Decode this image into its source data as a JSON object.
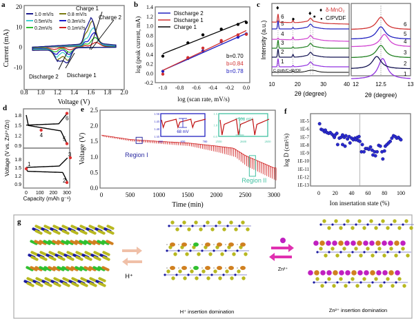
{
  "panels": {
    "a": "a",
    "b": "b",
    "c": "c",
    "d": "d",
    "e": "e",
    "f": "f",
    "g": "g"
  },
  "chart_data": [
    {
      "id": "a",
      "type": "line",
      "xlabel": "Voltage (V)",
      "ylabel": "Current (mA)",
      "xlim": [
        0.8,
        2.0
      ],
      "ylim": [
        -21,
        20
      ],
      "xticks": [
        "0.8",
        "1.0",
        "1.2",
        "1.4",
        "1.6",
        "1.8",
        "2.0"
      ],
      "yticks": [
        "20",
        "10",
        "0",
        "-10"
      ],
      "annotations": [
        "Charge 1",
        "Charge 2",
        "Discharge 2",
        "Discharge 1"
      ],
      "series": [
        {
          "name": "1.0 mV/s",
          "color": "#1a1a8c",
          "charge_peak": 12,
          "discharge1_peak": -6.8,
          "discharge2_peak": -6.2
        },
        {
          "name": "0.8 mV/s",
          "color": "#7a7a10",
          "charge_peak": 11,
          "discharge1_peak": -6,
          "discharge2_peak": -5.4
        },
        {
          "name": "0.5mV/s",
          "color": "#40d0d0",
          "charge_peak": 8,
          "discharge1_peak": -4.6,
          "discharge2_peak": -4
        },
        {
          "name": "0.3mV/s",
          "color": "#1a1acc",
          "charge_peak": 6,
          "discharge1_peak": -3.4,
          "discharge2_peak": -2.8
        },
        {
          "name": "0.2mV/s",
          "color": "#30c030",
          "charge_peak": 4,
          "discharge1_peak": -2.4,
          "discharge2_peak": -1.8
        },
        {
          "name": "0.1mV/s",
          "color": "#d02020",
          "charge_peak": 2,
          "discharge1_peak": -1.2,
          "discharge2_peak": -0.8
        }
      ]
    },
    {
      "id": "b",
      "type": "scatter",
      "xlabel": "log (scan rate, mV/s)",
      "ylabel": "log (peak current, mA)",
      "xlim": [
        -1.1,
        0.1
      ],
      "ylim": [
        -0.2,
        1.4
      ],
      "xticks": [
        "-1.0",
        "-0.8",
        "-0.6",
        "-0.4",
        "-0.2",
        "0.0"
      ],
      "yticks": [
        "1.4",
        "1.2",
        "1.0",
        "0.8",
        "0.6",
        "0.4",
        "0.2",
        "0.0",
        "-0.2"
      ],
      "x": [
        -1.0,
        -0.7,
        -0.52,
        -0.3,
        -0.1,
        0.0
      ],
      "series": [
        {
          "name": "Discharge 2",
          "color": "#2020c0",
          "values": [
            0.04,
            0.31,
            0.47,
            0.66,
            0.76,
            0.83
          ],
          "fit": [
            0.06,
            0.84
          ],
          "b": "b=0.78"
        },
        {
          "name": "Discharge 1",
          "color": "#d03030",
          "values": [
            -0.02,
            0.33,
            0.53,
            0.69,
            0.81,
            0.82
          ],
          "fit": [
            0.06,
            0.9
          ],
          "b": "b=0.84"
        },
        {
          "name": "Charge 1",
          "color": "#000000",
          "values": [
            0.36,
            0.64,
            0.81,
            0.93,
            1.03,
            1.07
          ],
          "fit": [
            0.41,
            1.11
          ],
          "b": "b=0.70"
        }
      ]
    },
    {
      "id": "c",
      "type": "line",
      "xlabel": "2θ (degree)",
      "ylabel": "Intensity (a.u.)",
      "xlim": [
        10,
        40
      ],
      "xticks": [
        "10",
        "20",
        "30",
        "40"
      ],
      "legend": [
        {
          "label": "δ-MnO₂",
          "color": "#d03030",
          "marker": "diamond"
        },
        {
          "label": "C/PVDF",
          "color": "#000000",
          "marker": "dot"
        }
      ],
      "baseline_label": "C cloth/C+PVDF",
      "mno2_peaks": [
        12.4,
        25.0
      ],
      "cpvdf_peaks": [
        18.2,
        26.0
      ],
      "series": [
        {
          "name": "1",
          "color": "#9030e0"
        },
        {
          "name": "2",
          "color": "#101050"
        },
        {
          "name": "3",
          "color": "#208020"
        },
        {
          "name": "4",
          "color": "#d040d0"
        },
        {
          "name": "5",
          "color": "#2020c0"
        },
        {
          "name": "6",
          "color": "#d03030"
        }
      ],
      "zoom": {
        "xlim": [
          12,
          13
        ],
        "xticks": [
          "12",
          "12.5",
          "13"
        ],
        "xlabel": "2θ (degree)",
        "peak_positions": [
          12.53,
          12.43,
          12.5,
          12.56,
          12.5,
          12.5
        ]
      }
    },
    {
      "id": "d",
      "type": "line",
      "xlabel": "Capacity (mAh g⁻¹)",
      "ylabel": "Voltage (V vs. Zn²⁺/Zn)",
      "xlim": [
        -20,
        330
      ],
      "xticks": [
        "0",
        "100",
        "200",
        "300"
      ],
      "yticks": [
        "1.8",
        "1.5",
        "1.2",
        "0.9"
      ],
      "points": [
        {
          "label": "1",
          "capacity": 0,
          "voltage": 1.45
        },
        {
          "label": "2",
          "capacity": 300,
          "voltage": 0.95
        },
        {
          "label": "3",
          "capacity": 325,
          "voltage": 1.85
        },
        {
          "label": "4",
          "capacity": 110,
          "voltage": 1.35
        },
        {
          "label": "5",
          "capacity": 300,
          "voltage": 0.95
        },
        {
          "label": "6",
          "capacity": 300,
          "voltage": 1.85
        }
      ]
    },
    {
      "id": "e",
      "type": "line",
      "xlabel": "Time (min)",
      "ylabel": "Voltage (V)",
      "xlim": [
        0,
        3050
      ],
      "ylim": [
        0,
        2.5
      ],
      "xticks": [
        "0",
        "500",
        "1000",
        "1500",
        "2000",
        "2500",
        "3000"
      ],
      "yticks": [
        "2.5",
        "2.0",
        "1.5",
        "1.0",
        "0.5",
        "0.0"
      ],
      "color": "#d02020",
      "upper_envelope": {
        "t": [
          0,
          500,
          1000,
          1500,
          2000,
          2300,
          2500,
          3000
        ],
        "v": [
          1.7,
          1.56,
          1.5,
          1.45,
          1.35,
          1.28,
          1.05,
          0.65
        ]
      },
      "lower_envelope": {
        "t": [
          0,
          500,
          1000,
          1500,
          2000,
          2300,
          2500,
          3000
        ],
        "v": [
          1.65,
          1.5,
          1.42,
          1.35,
          1.15,
          1.0,
          0.7,
          0.25
        ]
      },
      "regions": [
        {
          "label": "Region I",
          "color": "#2a2aa0",
          "t": 650
        },
        {
          "label": "Region II",
          "color": "#40c0a0",
          "t": 2620
        }
      ],
      "insets": [
        {
          "color": "#2020c0",
          "xticks": [
            "600",
            "650",
            "700"
          ],
          "yticks": [
            "1.50",
            "1.45",
            "1.40",
            "1.35"
          ],
          "annotation": "68 mV"
        },
        {
          "color": "#40c0a0",
          "xticks": [
            "2550",
            "2600",
            "2650"
          ],
          "yticks": [
            "1.5",
            "1.0",
            "0.5"
          ],
          "annotation": "508 mV"
        }
      ]
    },
    {
      "id": "f",
      "type": "scatter",
      "xlabel": "Ion insertation state (%)",
      "ylabel": "log D (cm²/s)",
      "xlim": [
        -5,
        110
      ],
      "ylim_exp": [
        -13.2,
        -4.7
      ],
      "xticks": [
        "0",
        "20",
        "40",
        "60",
        "80",
        "100"
      ],
      "yticks": [
        "1E-5",
        "1E-6",
        "1E-7",
        "1E-8",
        "1E-9",
        "1E-10",
        "1E-11",
        "1E-12",
        "1E-13"
      ],
      "divider_x": 50,
      "color": "#2a2ad0",
      "points": [
        [
          1,
          -5.4
        ],
        [
          3,
          -6.1
        ],
        [
          5,
          -6.2
        ],
        [
          7,
          -6.4
        ],
        [
          8,
          -6.2
        ],
        [
          10,
          -6.5
        ],
        [
          12,
          -6.6
        ],
        [
          14,
          -6.5
        ],
        [
          16,
          -6.7
        ],
        [
          18,
          -6.9
        ],
        [
          19,
          -7.1
        ],
        [
          20,
          -6.8
        ],
        [
          22,
          -6.6
        ],
        [
          23,
          -8
        ],
        [
          25,
          -7.2
        ],
        [
          27,
          -7.1
        ],
        [
          29,
          -6.8
        ],
        [
          29,
          -8
        ],
        [
          31,
          -7.1
        ],
        [
          32,
          -8.2
        ],
        [
          33,
          -6.9
        ],
        [
          35,
          -7.3
        ],
        [
          37,
          -7.0
        ],
        [
          38,
          -7.8
        ],
        [
          40,
          -7.2
        ],
        [
          42,
          -7.4
        ],
        [
          44,
          -7.2
        ],
        [
          45,
          -7.4
        ],
        [
          47,
          -7.1
        ],
        [
          48,
          -7.5
        ],
        [
          49,
          -7.0
        ],
        [
          50,
          -7.6
        ],
        [
          52,
          -8.9
        ],
        [
          53,
          -8.0
        ],
        [
          55,
          -8.9
        ],
        [
          57,
          -8.5
        ],
        [
          59,
          -8.5
        ],
        [
          61,
          -8.6
        ],
        [
          63,
          -8.3
        ],
        [
          65,
          -8.7
        ],
        [
          66,
          -9.3
        ],
        [
          68,
          -8.9
        ],
        [
          69,
          -9.4
        ],
        [
          71,
          -8.9
        ],
        [
          73,
          -8.1
        ],
        [
          75,
          -8.2
        ],
        [
          77,
          -8.9
        ],
        [
          78,
          -9.8
        ],
        [
          80,
          -8.8
        ],
        [
          81,
          -8.2
        ],
        [
          83,
          -8.0
        ],
        [
          85,
          -7.8
        ],
        [
          87,
          -7.6
        ],
        [
          89,
          -7.2
        ],
        [
          91,
          -6.9
        ],
        [
          93,
          -7.0
        ],
        [
          95,
          -7.2
        ],
        [
          97,
          -7.1
        ],
        [
          99,
          -7.3
        ],
        [
          100,
          -7.4
        ]
      ]
    }
  ],
  "diagram_g": {
    "h_label": "H⁺",
    "zn_label": "Zn²⁺",
    "middle_caption": "H⁺ insertion domination",
    "right_caption": "Zn²⁺ insertion domination",
    "colors": {
      "mn": "#1a1aa0",
      "o": "#b8b820",
      "h_layer": "#30c030",
      "water": "#d08020",
      "zn": "#c020c0",
      "arrow_h": "#f0c0a8",
      "arrow_zn": "#e030b0"
    }
  }
}
